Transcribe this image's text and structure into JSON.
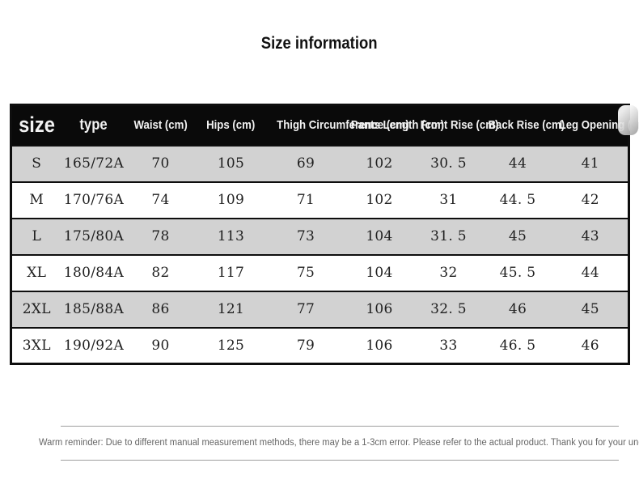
{
  "page": {
    "title": "Size information"
  },
  "colors": {
    "header_bg": "#0a0a0a",
    "header_text": "#f2f2f2",
    "row_stripe": "#d2d2d2",
    "row_plain": "#ffffff",
    "border": "#0e0e0e",
    "reminder_text": "#666666"
  },
  "table": {
    "columns": [
      {
        "key": "size",
        "label": "size"
      },
      {
        "key": "type",
        "label": "type"
      },
      {
        "key": "waist",
        "label": "Waist (cm)"
      },
      {
        "key": "hips",
        "label": "Hips (cm)"
      },
      {
        "key": "thigh_circumference",
        "label": "Thigh Circumference (cm)"
      },
      {
        "key": "pants_length",
        "label": "Pants Length (cm)"
      },
      {
        "key": "front_rise",
        "label": "Front Rise (cm)"
      },
      {
        "key": "back_rise",
        "label": "Back Rise (cm)"
      },
      {
        "key": "leg_opening",
        "label": "Leg Opening (cm)"
      }
    ],
    "rows": [
      [
        "S",
        "165/72A",
        "70",
        "105",
        "69",
        "102",
        "30. 5",
        "44",
        "41"
      ],
      [
        "M",
        "170/76A",
        "74",
        "109",
        "71",
        "102",
        "31",
        "44. 5",
        "42"
      ],
      [
        "L",
        "175/80A",
        "78",
        "113",
        "73",
        "104",
        "31. 5",
        "45",
        "43"
      ],
      [
        "XL",
        "180/84A",
        "82",
        "117",
        "75",
        "104",
        "32",
        "45. 5",
        "44"
      ],
      [
        "2XL",
        "185/88A",
        "86",
        "121",
        "77",
        "106",
        "32. 5",
        "46",
        "45"
      ],
      [
        "3XL",
        "190/92A",
        "90",
        "125",
        "79",
        "106",
        "33",
        "46. 5",
        "46"
      ]
    ]
  },
  "footer": {
    "reminder": "Warm reminder: Due to different manual measurement methods, there may be a 1-3cm error. Please refer to the actual product. Thank you for your understanding."
  }
}
